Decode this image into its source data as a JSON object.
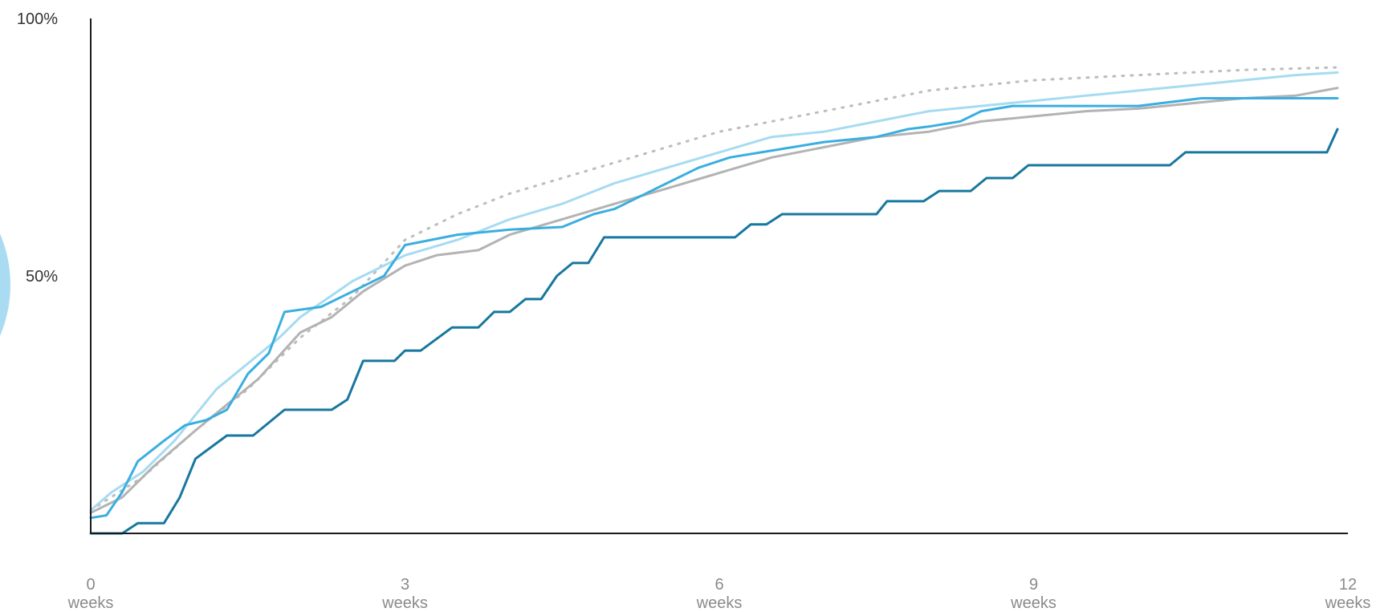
{
  "chart_data": {
    "type": "line",
    "title": "",
    "xlabel": "",
    "ylabel": "",
    "xlim": [
      0,
      12
    ],
    "ylim": [
      0,
      100
    ],
    "grid": false,
    "legend": "none",
    "y_ticks": [
      {
        "value": 100,
        "label": "100%"
      },
      {
        "value": 50,
        "label": "50%"
      }
    ],
    "x_ticks": [
      {
        "value": 0,
        "label": "0",
        "unit": "weeks"
      },
      {
        "value": 3,
        "label": "3",
        "unit": "weeks"
      },
      {
        "value": 6,
        "label": "6",
        "unit": "weeks"
      },
      {
        "value": 9,
        "label": "9",
        "unit": "weeks"
      },
      {
        "value": 12,
        "label": "12",
        "unit": "weeks"
      }
    ],
    "series": [
      {
        "color": "#bdbdbd",
        "dash": "dotted",
        "width": 3,
        "points": [
          [
            0,
            4.5
          ],
          [
            0.5,
            11
          ],
          [
            1,
            20
          ],
          [
            1.5,
            28
          ],
          [
            2,
            38
          ],
          [
            2.5,
            46
          ],
          [
            3,
            57
          ],
          [
            3.5,
            62
          ],
          [
            4,
            66
          ],
          [
            5,
            72
          ],
          [
            6,
            78
          ],
          [
            7,
            82
          ],
          [
            8,
            86
          ],
          [
            9,
            88
          ],
          [
            10,
            89
          ],
          [
            11,
            90
          ],
          [
            11.9,
            90.5
          ]
        ]
      },
      {
        "color": "#b3b3b3",
        "dash": "solid",
        "width": 3,
        "points": [
          [
            0,
            4
          ],
          [
            0.3,
            7
          ],
          [
            0.6,
            13
          ],
          [
            1,
            20
          ],
          [
            1.3,
            25
          ],
          [
            1.6,
            30
          ],
          [
            2,
            39
          ],
          [
            2.3,
            42
          ],
          [
            2.6,
            47
          ],
          [
            3,
            52
          ],
          [
            3.3,
            54
          ],
          [
            3.7,
            55
          ],
          [
            4,
            58
          ],
          [
            4.5,
            61
          ],
          [
            5,
            64
          ],
          [
            5.5,
            67
          ],
          [
            6,
            70
          ],
          [
            6.5,
            73
          ],
          [
            7,
            75
          ],
          [
            7.5,
            77
          ],
          [
            8,
            78
          ],
          [
            8.5,
            80
          ],
          [
            9,
            81
          ],
          [
            9.5,
            82
          ],
          [
            10,
            82.5
          ],
          [
            10.5,
            83.5
          ],
          [
            11,
            84.5
          ],
          [
            11.5,
            85
          ],
          [
            11.9,
            86.5
          ]
        ]
      },
      {
        "color": "#a6dbf2",
        "dash": "solid",
        "width": 3,
        "points": [
          [
            0,
            4.5
          ],
          [
            0.2,
            8
          ],
          [
            0.5,
            12
          ],
          [
            0.8,
            18
          ],
          [
            1,
            23
          ],
          [
            1.2,
            28
          ],
          [
            1.5,
            33
          ],
          [
            1.8,
            38
          ],
          [
            2,
            42
          ],
          [
            2.5,
            49
          ],
          [
            3,
            54
          ],
          [
            3.5,
            57
          ],
          [
            4,
            61
          ],
          [
            4.5,
            64
          ],
          [
            5,
            68
          ],
          [
            5.5,
            71
          ],
          [
            6,
            74
          ],
          [
            6.5,
            77
          ],
          [
            7,
            78
          ],
          [
            7.5,
            80
          ],
          [
            8,
            82
          ],
          [
            8.5,
            83
          ],
          [
            9,
            84
          ],
          [
            9.5,
            85
          ],
          [
            10,
            86
          ],
          [
            10.5,
            87
          ],
          [
            11,
            88
          ],
          [
            11.5,
            89
          ],
          [
            11.9,
            89.5
          ]
        ]
      },
      {
        "color": "#3aaee0",
        "dash": "solid",
        "width": 3,
        "points": [
          [
            0,
            3
          ],
          [
            0.15,
            3.5
          ],
          [
            0.3,
            8
          ],
          [
            0.45,
            14
          ],
          [
            0.7,
            18
          ],
          [
            0.9,
            21
          ],
          [
            1.1,
            22
          ],
          [
            1.3,
            24
          ],
          [
            1.5,
            31
          ],
          [
            1.7,
            35
          ],
          [
            1.85,
            43
          ],
          [
            2.2,
            44
          ],
          [
            2.5,
            47
          ],
          [
            2.8,
            50
          ],
          [
            3,
            56
          ],
          [
            3.5,
            58
          ],
          [
            4,
            59
          ],
          [
            4.5,
            59.5
          ],
          [
            4.8,
            62
          ],
          [
            5,
            63
          ],
          [
            5.2,
            65
          ],
          [
            5.5,
            68
          ],
          [
            5.8,
            71
          ],
          [
            6.1,
            73
          ],
          [
            6.4,
            74
          ],
          [
            6.7,
            75
          ],
          [
            7,
            76
          ],
          [
            7.5,
            77
          ],
          [
            7.8,
            78.5
          ],
          [
            8,
            79
          ],
          [
            8.3,
            80
          ],
          [
            8.5,
            82
          ],
          [
            8.8,
            83
          ],
          [
            9.2,
            83
          ],
          [
            9.6,
            83
          ],
          [
            10,
            83
          ],
          [
            10.4,
            84
          ],
          [
            10.6,
            84.5
          ],
          [
            11,
            84.5
          ],
          [
            11.5,
            84.5
          ],
          [
            11.9,
            84.5
          ]
        ]
      },
      {
        "color": "#17779e",
        "dash": "solid",
        "width": 3,
        "points": [
          [
            0,
            0
          ],
          [
            0.3,
            0
          ],
          [
            0.45,
            2
          ],
          [
            0.7,
            2
          ],
          [
            0.85,
            7
          ],
          [
            1,
            14.5
          ],
          [
            1.3,
            19
          ],
          [
            1.55,
            19
          ],
          [
            1.85,
            24
          ],
          [
            2.3,
            24
          ],
          [
            2.45,
            26
          ],
          [
            2.6,
            33.5
          ],
          [
            2.9,
            33.5
          ],
          [
            3,
            35.5
          ],
          [
            3.15,
            35.5
          ],
          [
            3.45,
            40
          ],
          [
            3.7,
            40
          ],
          [
            3.85,
            43
          ],
          [
            4,
            43
          ],
          [
            4.15,
            45.5
          ],
          [
            4.3,
            45.5
          ],
          [
            4.45,
            50
          ],
          [
            4.6,
            52.5
          ],
          [
            4.75,
            52.5
          ],
          [
            4.9,
            57.5
          ],
          [
            5.5,
            57.5
          ],
          [
            6,
            57.5
          ],
          [
            6.15,
            57.5
          ],
          [
            6.3,
            60
          ],
          [
            6.45,
            60
          ],
          [
            6.6,
            62
          ],
          [
            7,
            62
          ],
          [
            7.3,
            62
          ],
          [
            7.5,
            62
          ],
          [
            7.6,
            64.5
          ],
          [
            7.95,
            64.5
          ],
          [
            8.1,
            66.5
          ],
          [
            8.4,
            66.5
          ],
          [
            8.55,
            69
          ],
          [
            8.8,
            69
          ],
          [
            8.95,
            71.5
          ],
          [
            10.3,
            71.5
          ],
          [
            10.45,
            74
          ],
          [
            11.2,
            74
          ],
          [
            11.8,
            74
          ],
          [
            11.9,
            78.5
          ]
        ]
      }
    ]
  }
}
